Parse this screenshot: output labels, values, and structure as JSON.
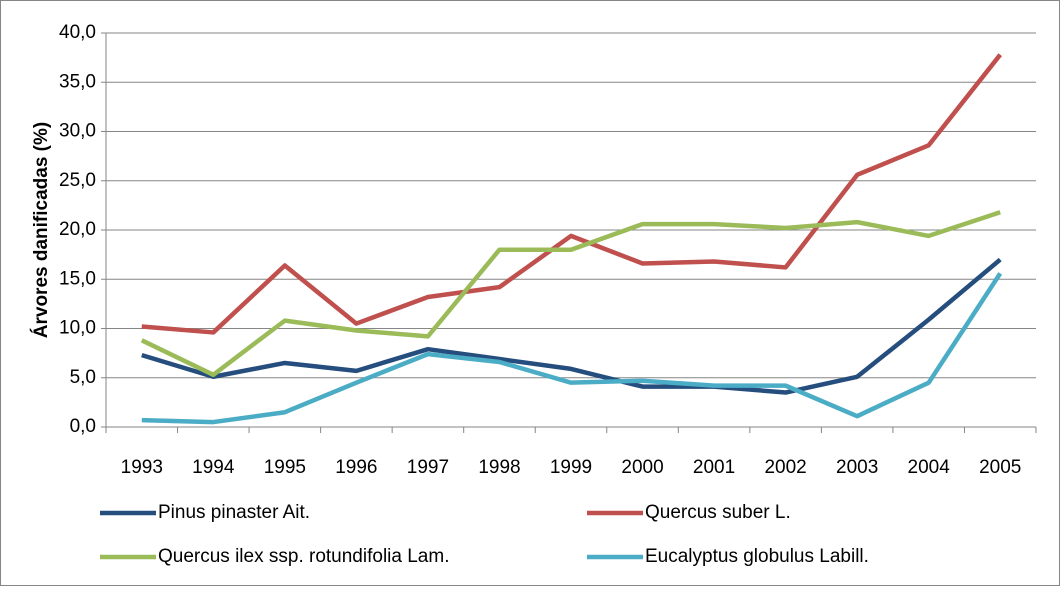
{
  "chart_data": {
    "type": "line",
    "ylabel": "Árvores danificadas  (%)",
    "categories": [
      "1993",
      "1994",
      "1995",
      "1996",
      "1997",
      "1998",
      "1999",
      "2000",
      "2001",
      "2002",
      "2003",
      "2004",
      "2005"
    ],
    "series": [
      {
        "name": "Pinus pinaster Ait.",
        "color": "#254e7e",
        "values": [
          7.3,
          5.1,
          6.5,
          5.7,
          7.9,
          6.9,
          5.9,
          4.1,
          4.1,
          3.5,
          5.1,
          10.9,
          17.0
        ]
      },
      {
        "name": "Quercus suber L.",
        "color": "#c0504d",
        "values": [
          10.2,
          9.6,
          16.4,
          10.5,
          13.2,
          14.2,
          19.4,
          16.6,
          16.8,
          16.2,
          25.6,
          28.6,
          37.8
        ]
      },
      {
        "name": "Quercus ilex ssp. rotundifolia Lam.",
        "color": "#9bbb59",
        "values": [
          8.8,
          5.3,
          10.8,
          9.8,
          9.2,
          18.0,
          18.0,
          20.6,
          20.6,
          20.2,
          20.8,
          19.4,
          21.8
        ]
      },
      {
        "name": "Eucalyptus globulus Labill.",
        "color": "#4bacc6",
        "values": [
          0.7,
          0.5,
          1.5,
          4.5,
          7.4,
          6.6,
          4.5,
          4.7,
          4.2,
          4.2,
          1.1,
          4.5,
          15.6
        ]
      }
    ],
    "ylim": [
      0,
      40
    ],
    "yticks": [
      {
        "value": 0,
        "label": "0,0"
      },
      {
        "value": 5,
        "label": "5,0"
      },
      {
        "value": 10,
        "label": "10,0"
      },
      {
        "value": 15,
        "label": "15,0"
      },
      {
        "value": 20,
        "label": "20,0"
      },
      {
        "value": 25,
        "label": "25,0"
      },
      {
        "value": 30,
        "label": "30,0"
      },
      {
        "value": 35,
        "label": "35,0"
      },
      {
        "value": 40,
        "label": "40,0"
      }
    ],
    "grid": true
  }
}
